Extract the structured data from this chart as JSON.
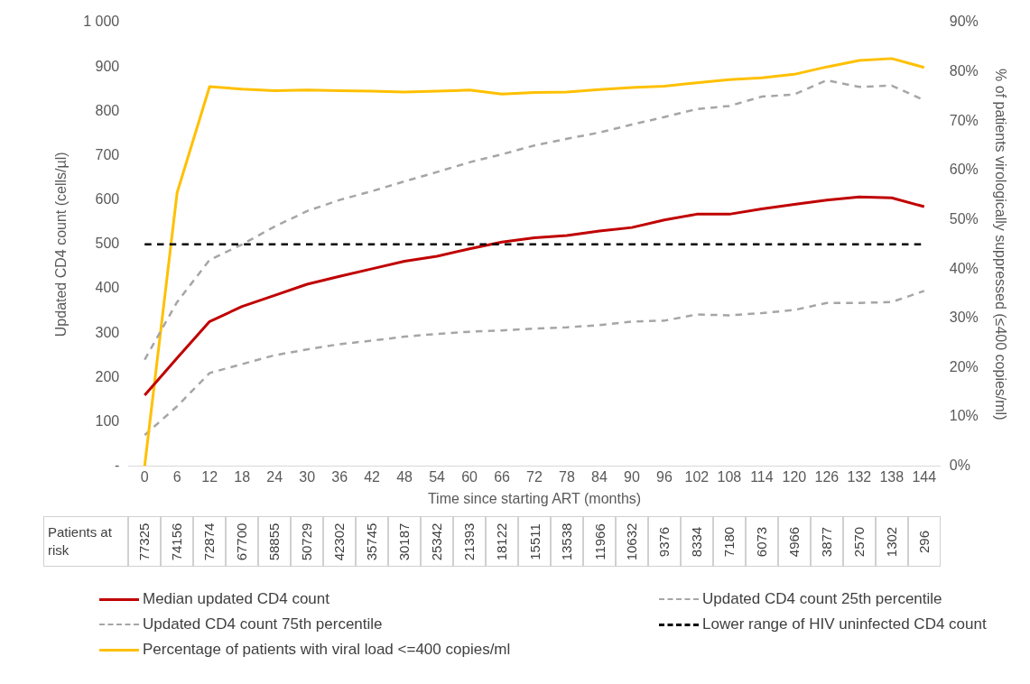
{
  "chart_data": {
    "type": "line",
    "xlabel": "Time since starting ART (months)",
    "ylabel": "Updated CD4 count (cells/µl)",
    "y2label": "% of patients virologically suppressed (≤400 copies/ml)",
    "categories": [
      "0",
      "6",
      "12",
      "18",
      "24",
      "30",
      "36",
      "42",
      "48",
      "54",
      "60",
      "66",
      "72",
      "78",
      "84",
      "90",
      "96",
      "102",
      "108",
      "114",
      "120",
      "126",
      "132",
      "138",
      "144"
    ],
    "series": [
      {
        "name": "Median updated CD4 count",
        "color": "#c00000",
        "line_style": "solid",
        "values": [
          160,
          244,
          326,
          360,
          385,
          410,
          428,
          445,
          462,
          473,
          490,
          505,
          515,
          520,
          530,
          538,
          555,
          568,
          568,
          580,
          590,
          600,
          607,
          605,
          585
        ]
      },
      {
        "name": "Updated CD4 count 75th percentile",
        "color": "#a6a6a6",
        "line_style": "dashed",
        "values": [
          240,
          370,
          465,
          500,
          540,
          575,
          600,
          620,
          642,
          663,
          685,
          703,
          723,
          738,
          752,
          770,
          787,
          805,
          812,
          833,
          838,
          870,
          855,
          858,
          825
        ]
      },
      {
        "name": "Percentage of patients with viral load <=400 copies/ml",
        "color": "#ffc000",
        "line_style": "solid",
        "axis": "y2",
        "values": [
          0,
          55.5,
          77,
          76.5,
          76.2,
          76.3,
          76.2,
          76.1,
          75.9,
          76.1,
          76.3,
          75.5,
          75.8,
          75.9,
          76.4,
          76.8,
          77.1,
          77.8,
          78.4,
          78.8,
          79.5,
          81,
          82.3,
          82.7,
          80.9
        ]
      },
      {
        "name": "Updated CD4 count 25th percentile",
        "color": "#a6a6a6",
        "line_style": "dashed",
        "values": [
          70,
          135,
          210,
          230,
          250,
          263,
          275,
          283,
          292,
          298,
          303,
          306,
          310,
          313,
          318,
          326,
          328,
          342,
          340,
          345,
          352,
          368,
          368,
          370,
          395
        ]
      }
    ],
    "ref_lines": [
      {
        "axis": "y",
        "value": 500,
        "label": "Lower range of HIV uninfected CD4 count",
        "color": "#000000",
        "line_style": "dashed"
      }
    ],
    "ylim": [
      0,
      1000
    ],
    "yticks": [
      {
        "value": 0,
        "label": "-"
      },
      100,
      200,
      300,
      400,
      500,
      600,
      700,
      800,
      900,
      {
        "value": 1000,
        "label": "1 000"
      }
    ],
    "y2lim": [
      0,
      90
    ],
    "y2ticks": [
      {
        "value": 0,
        "label": "0%"
      },
      {
        "value": 10,
        "label": "10%"
      },
      {
        "value": 20,
        "label": "20%"
      },
      {
        "value": 30,
        "label": "30%"
      },
      {
        "value": 40,
        "label": "40%"
      },
      {
        "value": 50,
        "label": "50%"
      },
      {
        "value": 60,
        "label": "60%"
      },
      {
        "value": 70,
        "label": "70%"
      },
      {
        "value": 80,
        "label": "80%"
      },
      {
        "value": 90,
        "label": "90%"
      }
    ],
    "grid": false,
    "marker": "none",
    "legend": "bottom",
    "annotations": [
      "Patients at risk",
      "77325",
      "74156",
      "72874",
      "67700",
      "58855",
      "50729",
      "42302",
      "35745",
      "30187",
      "25342",
      "21393",
      "18122",
      "15511",
      "13538",
      "11966",
      "10632",
      "9376",
      "8334",
      "7180",
      "6073",
      "4966",
      "3877",
      "2570",
      "1302",
      "296"
    ]
  }
}
